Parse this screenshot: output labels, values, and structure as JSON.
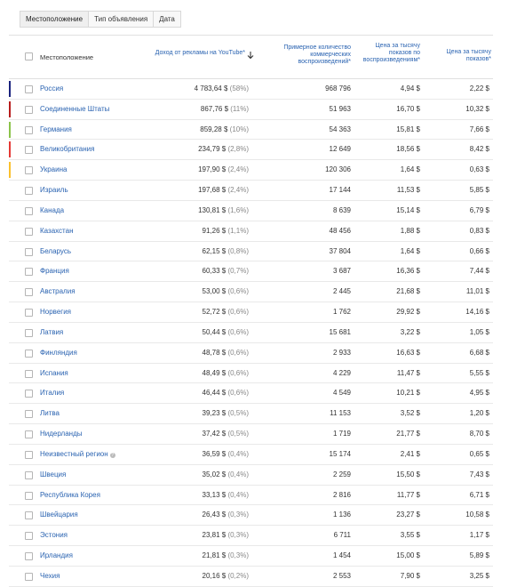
{
  "tabs": [
    "Местоположение",
    "Тип объявления",
    "Дата"
  ],
  "header": {
    "location": "Местоположение",
    "revenue": "Доход от рекламы на YouTube*",
    "impressions": "Примерное количество коммерческих воспроизведений*",
    "cpm_playback": "Цена за тысячу показов по воспроизведениям*",
    "cpm": "Цена за тысячу показов*"
  },
  "colors": {
    "link": "#2a63b1",
    "bars": [
      "#1a237e",
      "#b71c1c",
      "#8bc34a",
      "#e53935",
      "#fbc02d"
    ]
  },
  "rows": [
    {
      "name": "Россия",
      "rev": "4 783,64 $",
      "pct": "(58%)",
      "imp": "968 796",
      "c1": "4,94 $",
      "c2": "2,22 $",
      "bar": "#1a237e"
    },
    {
      "name": "Соединенные Штаты",
      "rev": "867,76 $",
      "pct": "(11%)",
      "imp": "51 963",
      "c1": "16,70 $",
      "c2": "10,32 $",
      "bar": "#b71c1c"
    },
    {
      "name": "Германия",
      "rev": "859,28 $",
      "pct": "(10%)",
      "imp": "54 363",
      "c1": "15,81 $",
      "c2": "7,66 $",
      "bar": "#8bc34a"
    },
    {
      "name": "Великобритания",
      "rev": "234,79 $",
      "pct": "(2,8%)",
      "imp": "12 649",
      "c1": "18,56 $",
      "c2": "8,42 $",
      "bar": "#e53935"
    },
    {
      "name": "Украина",
      "rev": "197,90 $",
      "pct": "(2,4%)",
      "imp": "120 306",
      "c1": "1,64 $",
      "c2": "0,63 $",
      "bar": "#fbc02d"
    },
    {
      "name": "Израиль",
      "rev": "197,68 $",
      "pct": "(2,4%)",
      "imp": "17 144",
      "c1": "11,53 $",
      "c2": "5,85 $"
    },
    {
      "name": "Канада",
      "rev": "130,81 $",
      "pct": "(1,6%)",
      "imp": "8 639",
      "c1": "15,14 $",
      "c2": "6,79 $"
    },
    {
      "name": "Казахстан",
      "rev": "91,26 $",
      "pct": "(1,1%)",
      "imp": "48 456",
      "c1": "1,88 $",
      "c2": "0,83 $"
    },
    {
      "name": "Беларусь",
      "rev": "62,15 $",
      "pct": "(0,8%)",
      "imp": "37 804",
      "c1": "1,64 $",
      "c2": "0,66 $"
    },
    {
      "name": "Франция",
      "rev": "60,33 $",
      "pct": "(0,7%)",
      "imp": "3 687",
      "c1": "16,36 $",
      "c2": "7,44 $"
    },
    {
      "name": "Австралия",
      "rev": "53,00 $",
      "pct": "(0,6%)",
      "imp": "2 445",
      "c1": "21,68 $",
      "c2": "11,01 $"
    },
    {
      "name": "Норвегия",
      "rev": "52,72 $",
      "pct": "(0,6%)",
      "imp": "1 762",
      "c1": "29,92 $",
      "c2": "14,16 $"
    },
    {
      "name": "Латвия",
      "rev": "50,44 $",
      "pct": "(0,6%)",
      "imp": "15 681",
      "c1": "3,22 $",
      "c2": "1,05 $"
    },
    {
      "name": "Финляндия",
      "rev": "48,78 $",
      "pct": "(0,6%)",
      "imp": "2 933",
      "c1": "16,63 $",
      "c2": "6,68 $"
    },
    {
      "name": "Испания",
      "rev": "48,49 $",
      "pct": "(0,6%)",
      "imp": "4 229",
      "c1": "11,47 $",
      "c2": "5,55 $"
    },
    {
      "name": "Италия",
      "rev": "46,44 $",
      "pct": "(0,6%)",
      "imp": "4 549",
      "c1": "10,21 $",
      "c2": "4,95 $"
    },
    {
      "name": "Литва",
      "rev": "39,23 $",
      "pct": "(0,5%)",
      "imp": "11 153",
      "c1": "3,52 $",
      "c2": "1,20 $"
    },
    {
      "name": "Нидерланды",
      "rev": "37,42 $",
      "pct": "(0,5%)",
      "imp": "1 719",
      "c1": "21,77 $",
      "c2": "8,70 $"
    },
    {
      "name": "Неизвестный регион",
      "rev": "36,59 $",
      "pct": "(0,4%)",
      "imp": "15 174",
      "c1": "2,41 $",
      "c2": "0,65 $",
      "help": true
    },
    {
      "name": "Швеция",
      "rev": "35,02 $",
      "pct": "(0,4%)",
      "imp": "2 259",
      "c1": "15,50 $",
      "c2": "7,43 $"
    },
    {
      "name": "Республика Корея",
      "rev": "33,13 $",
      "pct": "(0,4%)",
      "imp": "2 816",
      "c1": "11,77 $",
      "c2": "6,71 $"
    },
    {
      "name": "Швейцария",
      "rev": "26,43 $",
      "pct": "(0,3%)",
      "imp": "1 136",
      "c1": "23,27 $",
      "c2": "10,58 $"
    },
    {
      "name": "Эстония",
      "rev": "23,81 $",
      "pct": "(0,3%)",
      "imp": "6 711",
      "c1": "3,55 $",
      "c2": "1,17 $"
    },
    {
      "name": "Ирландия",
      "rev": "21,81 $",
      "pct": "(0,3%)",
      "imp": "1 454",
      "c1": "15,00 $",
      "c2": "5,89 $"
    },
    {
      "name": "Чехия",
      "rev": "20,16 $",
      "pct": "(0,2%)",
      "imp": "2 553",
      "c1": "7,90 $",
      "c2": "3,25 $"
    }
  ]
}
